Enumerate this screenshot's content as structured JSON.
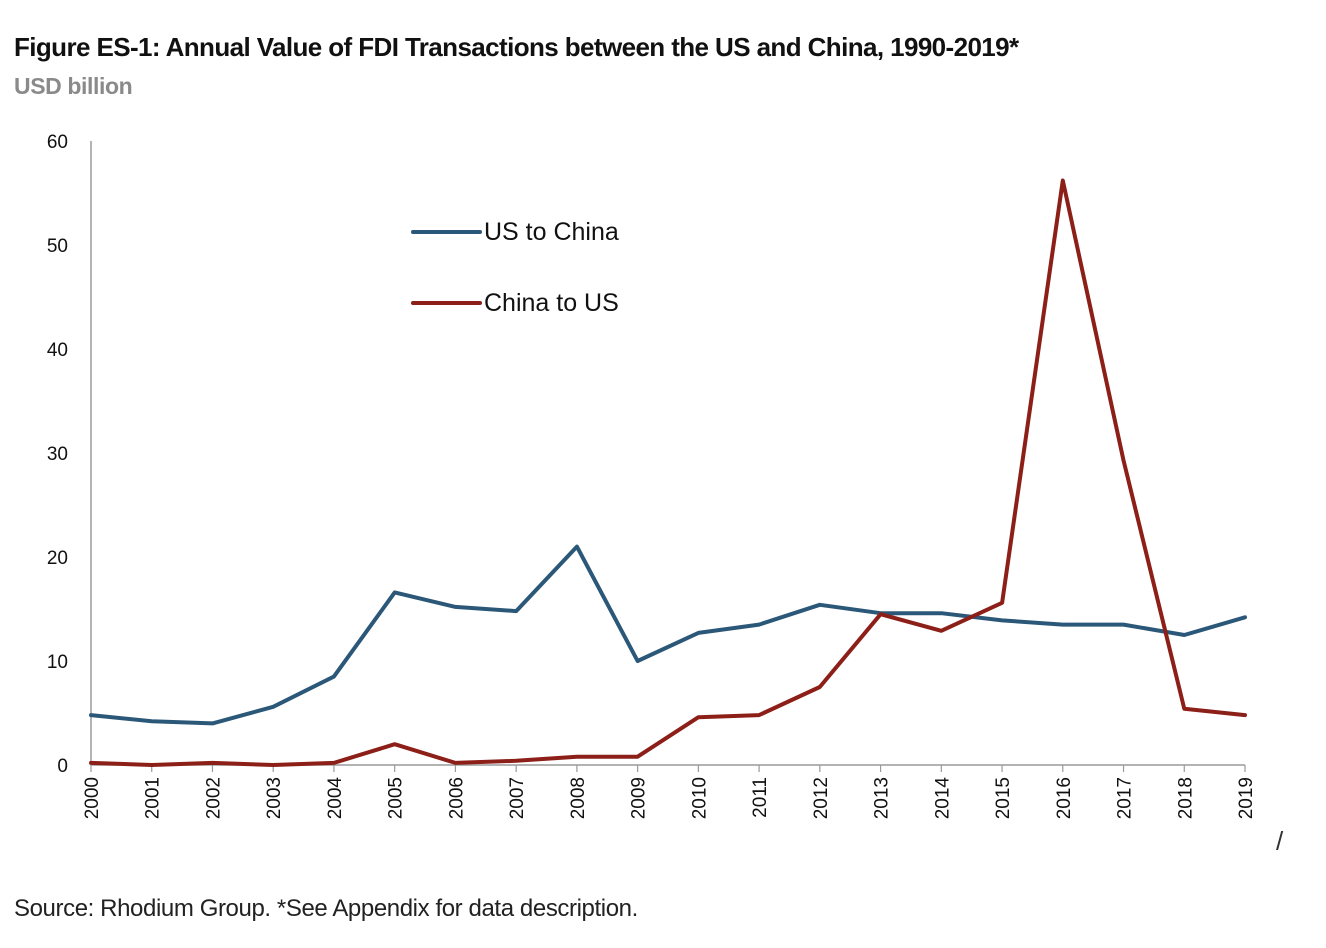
{
  "header": {
    "title": "Figure ES-1: Annual Value of FDI Transactions between the US and China, 1990-2019*",
    "subtitle": "USD billion"
  },
  "footer": {
    "source": "Source: Rhodium Group. *See Appendix for data description.",
    "stray_mark": "/"
  },
  "colors": {
    "us_to_china": "#2b5878",
    "china_to_us": "#8c1f18",
    "axis": "#9a9a9a"
  },
  "chart_data": {
    "type": "line",
    "title": "Figure ES-1: Annual Value of FDI Transactions between the US and China, 1990-2019*",
    "subtitle": "USD billion",
    "xlabel": "",
    "ylabel": "",
    "ylim": [
      0,
      60
    ],
    "yticks": [
      "0",
      "10",
      "20",
      "30",
      "40",
      "50",
      "60"
    ],
    "grid": false,
    "legend_position": "upper-left-center",
    "categories": [
      "2000",
      "2001",
      "2002",
      "2003",
      "2004",
      "2005",
      "2006",
      "2007",
      "2008",
      "2009",
      "2010",
      "2011",
      "2012",
      "2013",
      "2014",
      "2015",
      "2016",
      "2017",
      "2018",
      "2019"
    ],
    "series": [
      {
        "name": "US to China",
        "color": "#2b5878",
        "values": [
          4.8,
          4.2,
          4.0,
          5.6,
          8.5,
          16.6,
          15.2,
          14.8,
          21.0,
          10.0,
          12.7,
          13.5,
          15.4,
          14.6,
          14.6,
          13.9,
          13.5,
          13.5,
          12.5,
          14.2
        ]
      },
      {
        "name": "China to US",
        "color": "#8c1f18",
        "values": [
          0.2,
          0.0,
          0.2,
          0.0,
          0.2,
          2.0,
          0.2,
          0.4,
          0.8,
          0.8,
          4.6,
          4.8,
          7.5,
          14.5,
          12.9,
          15.6,
          56.2,
          29.3,
          5.4,
          4.8
        ]
      }
    ]
  }
}
